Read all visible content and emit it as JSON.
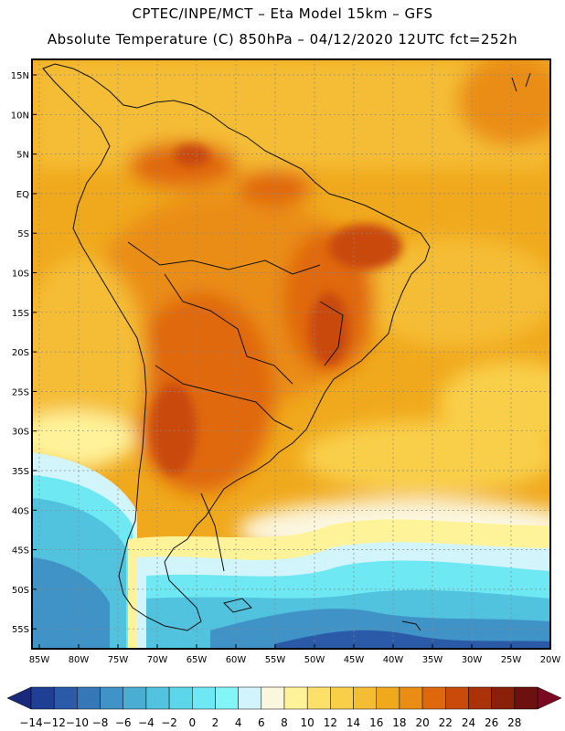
{
  "header": {
    "line1": "CPTEC/INPE/MCT –  Eta Model 15km – GFS",
    "line2": "Absolute Temperature (C) 850hPa – 04/12/2020 12UTC fct=252h"
  },
  "axes": {
    "lat_labels": [
      "15N",
      "10N",
      "5N",
      "EQ",
      "5S",
      "10S",
      "15S",
      "20S",
      "25S",
      "30S",
      "35S",
      "40S",
      "45S",
      "50S",
      "55S"
    ],
    "lon_labels": [
      "85W",
      "80W",
      "75W",
      "70W",
      "65W",
      "60W",
      "55W",
      "50W",
      "45W",
      "40W",
      "35W",
      "30W",
      "25W",
      "20W"
    ]
  },
  "colorbar": {
    "labels": [
      "-14",
      "-12",
      "-10",
      "-8",
      "-6",
      "-4",
      "-2",
      "0",
      "2",
      "4",
      "6",
      "8",
      "10",
      "12",
      "14",
      "16",
      "18",
      "20",
      "22",
      "24",
      "26",
      "28"
    ],
    "colors": [
      "#1f3f94",
      "#2a5aa8",
      "#3578b8",
      "#3f93c6",
      "#4aaed3",
      "#52c3df",
      "#5cd6ea",
      "#6ee8f2",
      "#82f5f8",
      "#d2f5fb",
      "#fbf6de",
      "#fff39a",
      "#fde06a",
      "#f9cf4a",
      "#f5bd35",
      "#f0a91c",
      "#ea8d14",
      "#e0680c",
      "#c94a0a",
      "#a93208",
      "#8a2008",
      "#6c1010"
    ],
    "under_color": "#1a2a7a",
    "over_color": "#7a0a20"
  },
  "colors": {
    "land_outline": "#111111",
    "grid": "#888888"
  }
}
